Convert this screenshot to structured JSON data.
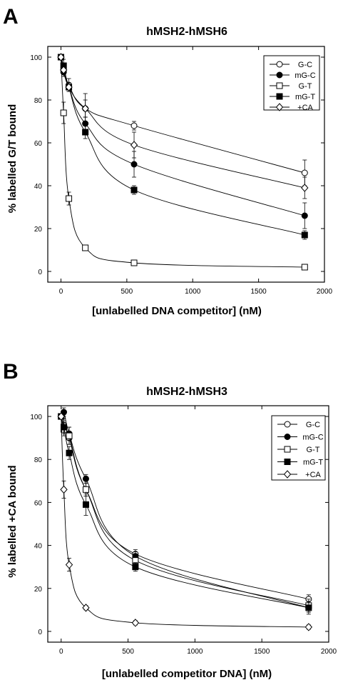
{
  "chart_data": [
    {
      "type": "line",
      "panel_label": "A",
      "title": "hMSH2-hMSH6",
      "xlabel": "[unlabelled DNA competitor] (nM)",
      "ylabel": "% labelled G/T bound",
      "xlim": [
        -100,
        2000
      ],
      "ylim": [
        -5,
        105
      ],
      "xticks": [
        "0",
        "500",
        "1000",
        "1500",
        "2000"
      ],
      "yticks": [
        "0",
        "20",
        "40",
        "60",
        "80",
        "100"
      ],
      "legend_position": "top-right",
      "series": [
        {
          "name": "G-C",
          "marker": "circle-open",
          "x": [
            0,
            20,
            60,
            185,
            555,
            1850
          ],
          "y": [
            100,
            94,
            87,
            76,
            68,
            46
          ],
          "err": [
            0,
            2,
            3,
            7,
            2,
            6
          ]
        },
        {
          "name": "mG-C",
          "marker": "circle-filled",
          "x": [
            0,
            20,
            60,
            185,
            555,
            1850
          ],
          "y": [
            100,
            93,
            86,
            69,
            50,
            26
          ],
          "err": [
            0,
            2,
            2,
            3,
            6,
            6
          ]
        },
        {
          "name": "G-T",
          "marker": "square-open",
          "x": [
            0,
            20,
            60,
            185,
            555,
            1850
          ],
          "y": [
            100,
            74,
            34,
            11,
            4,
            2
          ],
          "err": [
            0,
            5,
            3,
            1,
            1,
            1
          ]
        },
        {
          "name": "mG-T",
          "marker": "square-filled",
          "x": [
            0,
            20,
            60,
            185,
            555,
            1850
          ],
          "y": [
            100,
            96,
            86,
            65,
            38,
            17
          ],
          "err": [
            0,
            3,
            2,
            3,
            2,
            2
          ]
        },
        {
          "name": "+CA",
          "marker": "diamond-open",
          "x": [
            0,
            20,
            60,
            185,
            555,
            1850
          ],
          "y": [
            100,
            94,
            86,
            76,
            59,
            39
          ],
          "err": [
            0,
            2,
            2,
            4,
            6,
            5
          ]
        }
      ]
    },
    {
      "type": "line",
      "panel_label": "B",
      "title": "hMSH2-hMSH3",
      "xlabel": "[unlabelled competitor DNA] (nM)",
      "ylabel": "% labelled +CA bound",
      "xlim": [
        -100,
        2000
      ],
      "ylim": [
        -5,
        105
      ],
      "xticks": [
        "0",
        "500",
        "1000",
        "1500",
        "2000"
      ],
      "yticks": [
        "0",
        "20",
        "40",
        "60",
        "80",
        "100"
      ],
      "legend_position": "top-right",
      "series": [
        {
          "name": "G-C",
          "marker": "circle-open",
          "x": [
            0,
            20,
            60,
            185,
            555,
            1850
          ],
          "y": [
            100,
            96,
            90,
            66,
            36,
            15
          ],
          "err": [
            0,
            3,
            3,
            3,
            2,
            2
          ]
        },
        {
          "name": "mG-C",
          "marker": "circle-filled",
          "x": [
            0,
            20,
            60,
            185,
            555,
            1850
          ],
          "y": [
            100,
            102,
            92,
            71,
            35,
            11
          ],
          "err": [
            0,
            2,
            3,
            2,
            2,
            2
          ]
        },
        {
          "name": "G-T",
          "marker": "square-open",
          "x": [
            0,
            20,
            60,
            185,
            555,
            1850
          ],
          "y": [
            100,
            94,
            91,
            66,
            33,
            12
          ],
          "err": [
            0,
            3,
            4,
            3,
            2,
            3
          ]
        },
        {
          "name": "mG-T",
          "marker": "square-filled",
          "x": [
            0,
            20,
            60,
            185,
            555,
            1850
          ],
          "y": [
            100,
            95,
            83,
            59,
            30,
            11
          ],
          "err": [
            0,
            3,
            3,
            5,
            2,
            3
          ]
        },
        {
          "name": "+CA",
          "marker": "diamond-open",
          "x": [
            0,
            20,
            60,
            185,
            555,
            1850
          ],
          "y": [
            100,
            66,
            31,
            11,
            4,
            2
          ],
          "err": [
            0,
            4,
            3,
            1,
            1,
            1
          ]
        }
      ]
    }
  ]
}
